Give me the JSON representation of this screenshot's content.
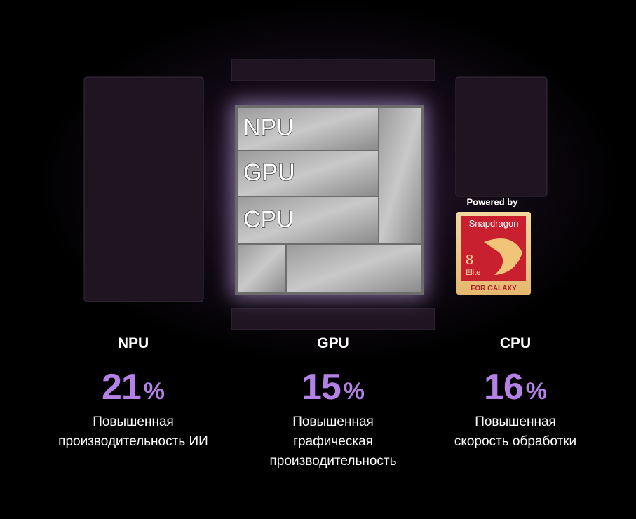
{
  "chip": {
    "labels": [
      "NPU",
      "GPU",
      "CPU"
    ]
  },
  "badge": {
    "caption": "Powered by",
    "brand": "Snapdragon",
    "model": "8",
    "edition": "Elite",
    "footer": "FOR GALAXY"
  },
  "stats": [
    {
      "label": "NPU",
      "value": 21,
      "unit": "%",
      "description": [
        "Повышенная",
        "производительность ИИ"
      ]
    },
    {
      "label": "GPU",
      "value": 15,
      "unit": "%",
      "description": [
        "Повышенная",
        "графическая",
        "производительность"
      ]
    },
    {
      "label": "CPU",
      "value": 16,
      "unit": "%",
      "description": [
        "Повышенная",
        "скорость обработки"
      ]
    }
  ]
}
